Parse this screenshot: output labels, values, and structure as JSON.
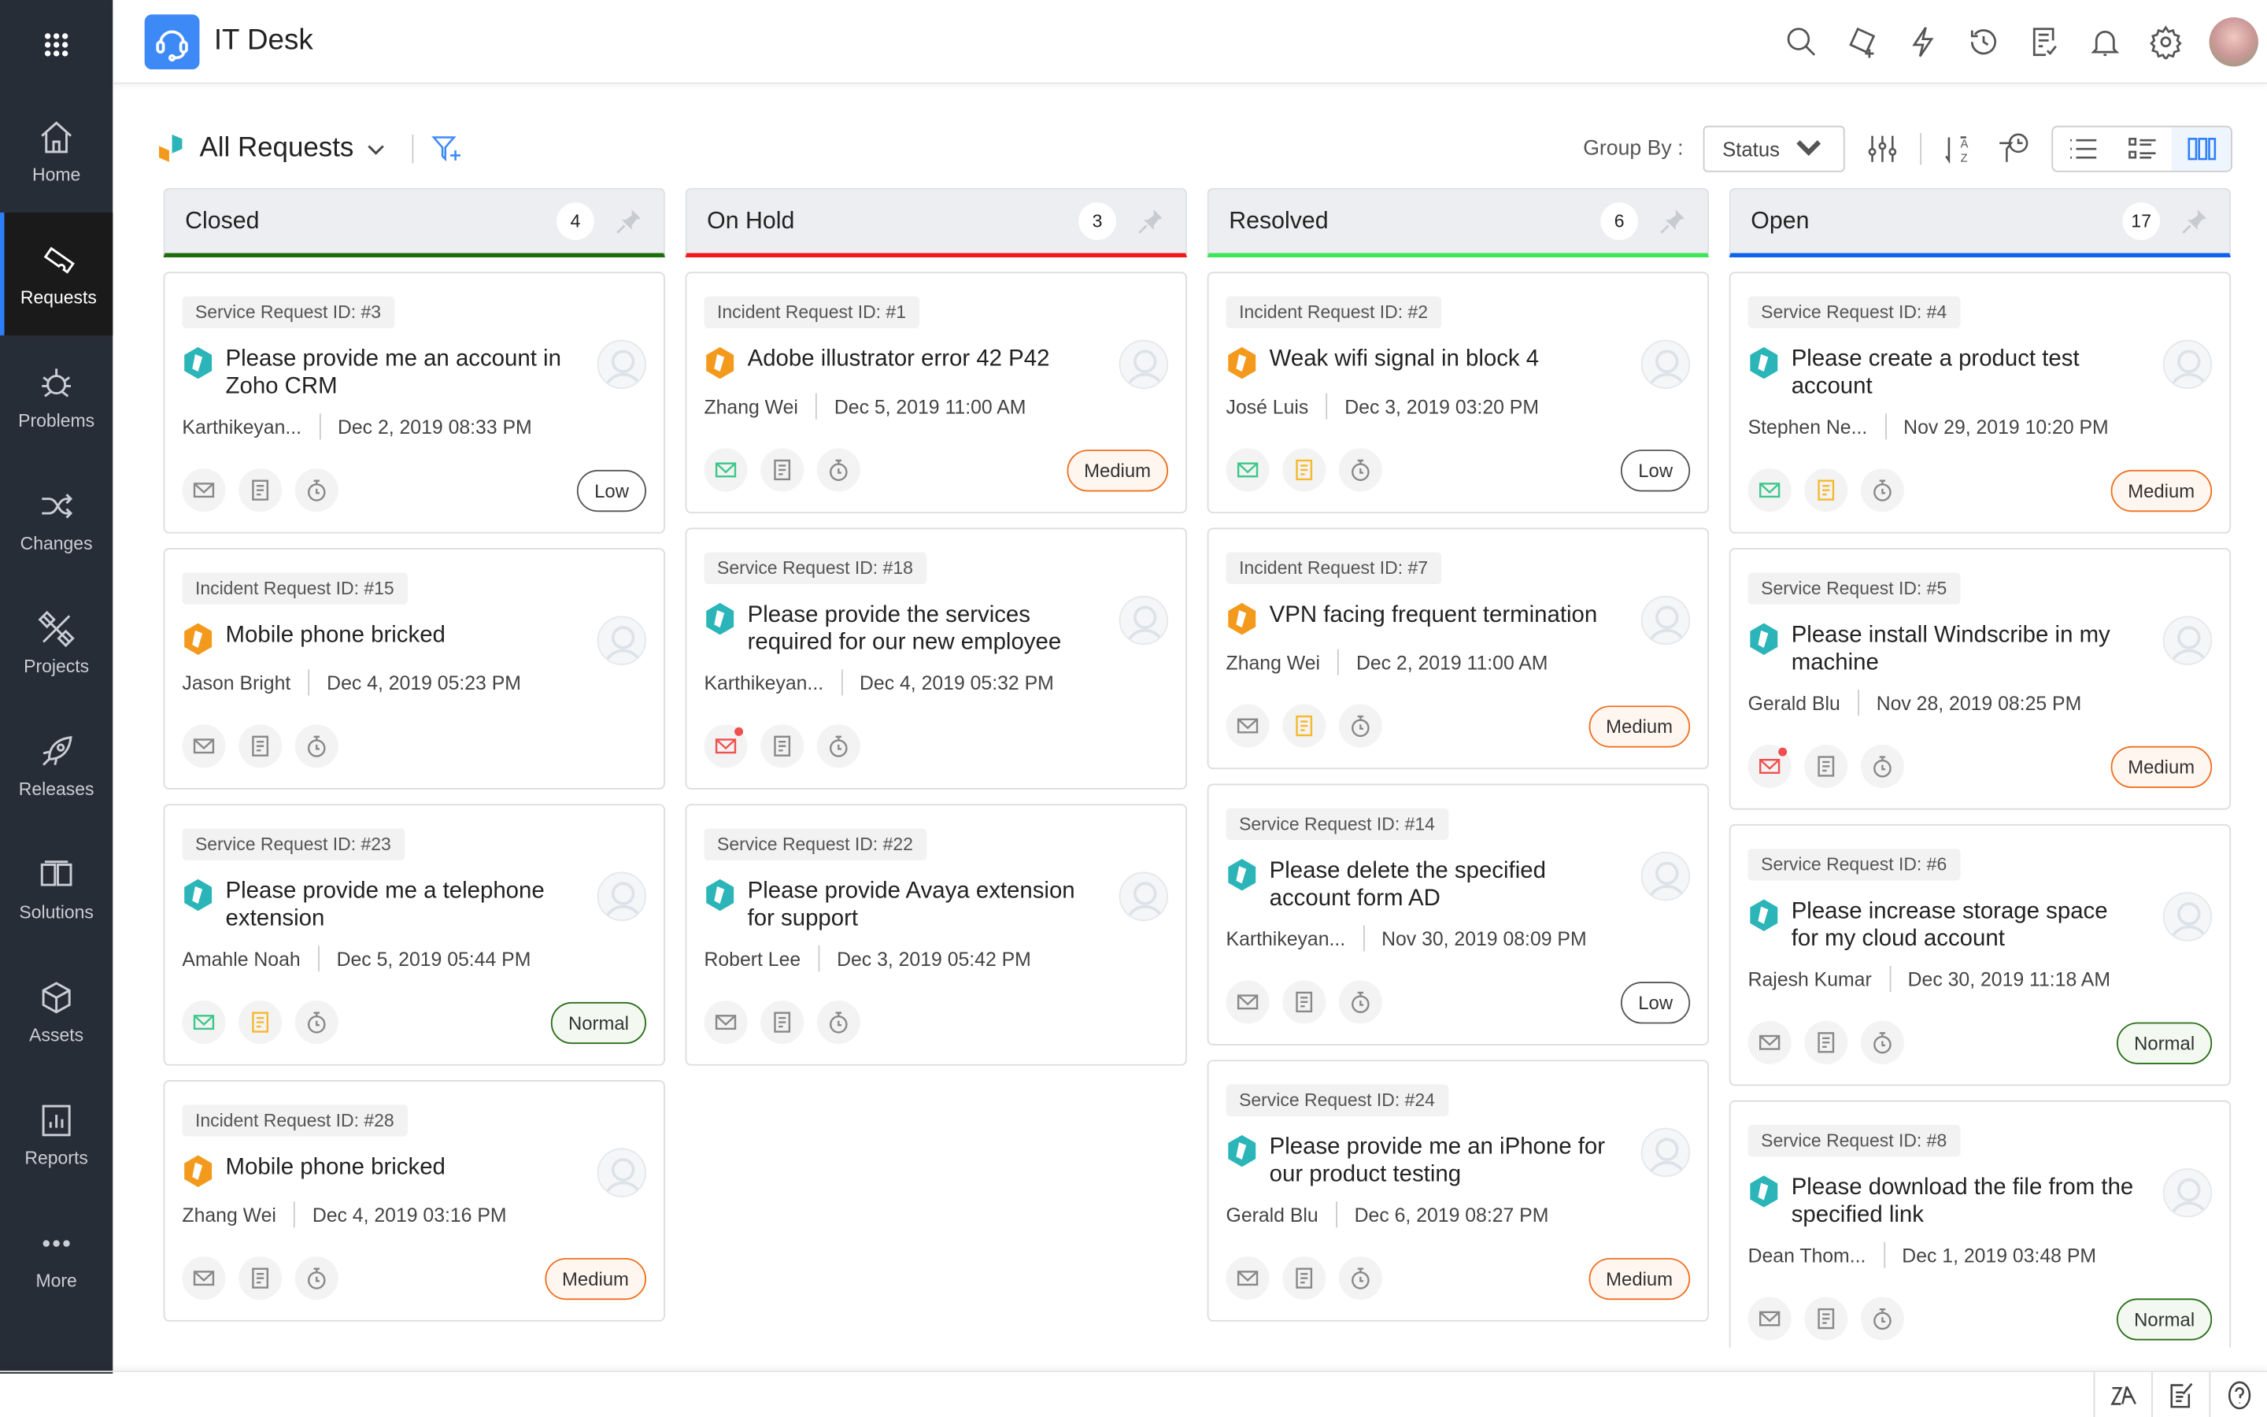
{
  "app": {
    "title": "IT Desk"
  },
  "sidebar": {
    "items": [
      {
        "label": "Home",
        "icon": "home-icon"
      },
      {
        "label": "Requests",
        "icon": "ticket-icon",
        "active": true
      },
      {
        "label": "Problems",
        "icon": "bug-icon"
      },
      {
        "label": "Changes",
        "icon": "shuffle-icon"
      },
      {
        "label": "Projects",
        "icon": "projects-icon"
      },
      {
        "label": "Releases",
        "icon": "rocket-icon"
      },
      {
        "label": "Solutions",
        "icon": "book-icon"
      },
      {
        "label": "Assets",
        "icon": "cube-icon"
      },
      {
        "label": "Reports",
        "icon": "chart-icon"
      },
      {
        "label": "More",
        "icon": "more-icon"
      }
    ]
  },
  "toolbar": {
    "view_title": "All Requests",
    "group_by_label": "Group By :",
    "group_by_value": "Status"
  },
  "colors": {
    "closed": "#1c6b0c",
    "on_hold": "#f01818",
    "resolved": "#3de55a",
    "open": "#1060f0",
    "low": "#555555",
    "medium": "#f07020",
    "normal": "#2a6e1a",
    "service": "#2bb5b8",
    "incident": "#f39a1d"
  },
  "columns": [
    {
      "name": "Closed",
      "count": "4",
      "color": "#1c6b0c",
      "cards": [
        {
          "type": "service",
          "id": "Service Request ID: #3",
          "title": "Please provide me an account in Zoho CRM",
          "requester": "Karthikeyan...",
          "date": "Dec 2, 2019 08:33 PM",
          "mail": "grey",
          "note": "grey",
          "priority": "Low"
        },
        {
          "type": "incident",
          "id": "Incident Request ID: #15",
          "title": "Mobile phone bricked",
          "requester": "Jason Bright",
          "date": "Dec 4, 2019 05:23 PM",
          "mail": "grey",
          "note": "grey",
          "priority": ""
        },
        {
          "type": "service",
          "id": "Service Request ID: #23",
          "title": "Please provide me a telephone extension",
          "requester": "Amahle Noah",
          "date": "Dec 5, 2019 05:44 PM",
          "mail": "green",
          "note": "yellow",
          "priority": "Normal"
        },
        {
          "type": "incident",
          "id": "Incident Request ID: #28",
          "title": "Mobile phone bricked",
          "requester": "Zhang Wei",
          "date": "Dec 4, 2019 03:16 PM",
          "mail": "grey",
          "note": "grey",
          "priority": "Medium"
        }
      ]
    },
    {
      "name": "On Hold",
      "count": "3",
      "color": "#f01818",
      "cards": [
        {
          "type": "incident",
          "id": "Incident Request ID: #1",
          "title": "Adobe illustrator error 42 P42",
          "requester": "Zhang Wei",
          "date": "Dec 5, 2019 11:00 AM",
          "mail": "green",
          "note": "grey",
          "priority": "Medium"
        },
        {
          "type": "service",
          "id": "Service Request ID: #18",
          "title": "Please provide the services required for our new employee",
          "requester": "Karthikeyan...",
          "date": "Dec 4, 2019 05:32 PM",
          "mail": "red",
          "note": "grey",
          "priority": ""
        },
        {
          "type": "service",
          "id": "Service Request ID: #22",
          "title": "Please provide Avaya extension for support",
          "requester": "Robert Lee",
          "date": "Dec 3, 2019 05:42 PM",
          "mail": "grey",
          "note": "grey",
          "priority": ""
        }
      ]
    },
    {
      "name": "Resolved",
      "count": "6",
      "color": "#3de55a",
      "cards": [
        {
          "type": "incident",
          "id": "Incident Request ID: #2",
          "title": "Weak wifi signal in block 4",
          "requester": "José Luis",
          "date": "Dec 3, 2019 03:20 PM",
          "mail": "green",
          "note": "yellow",
          "priority": "Low"
        },
        {
          "type": "incident",
          "id": "Incident Request ID: #7",
          "title": "VPN facing frequent termination",
          "requester": "Zhang Wei",
          "date": "Dec 2, 2019 11:00 AM",
          "mail": "grey",
          "note": "yellow",
          "priority": "Medium"
        },
        {
          "type": "service",
          "id": "Service Request ID: #14",
          "title": "Please delete the specified account form AD",
          "requester": "Karthikeyan...",
          "date": "Nov 30, 2019 08:09 PM",
          "mail": "grey",
          "note": "grey",
          "priority": "Low"
        },
        {
          "type": "service",
          "id": "Service Request ID: #24",
          "title": "Please provide me an iPhone for our product testing",
          "requester": "Gerald Blu",
          "date": "Dec 6, 2019 08:27 PM",
          "mail": "grey",
          "note": "grey",
          "priority": "Medium"
        }
      ]
    },
    {
      "name": "Open",
      "count": "17",
      "color": "#1060f0",
      "cards": [
        {
          "type": "service",
          "id": "Service Request ID: #4",
          "title": "Please create a product test account",
          "requester": "Stephen Ne...",
          "date": "Nov 29, 2019 10:20 PM",
          "mail": "green",
          "note": "yellow",
          "priority": "Medium"
        },
        {
          "type": "service",
          "id": "Service Request ID: #5",
          "title": "Please install Windscribe in my machine",
          "requester": "Gerald Blu",
          "date": "Nov 28, 2019 08:25 PM",
          "mail": "red",
          "note": "grey",
          "priority": "Medium"
        },
        {
          "type": "service",
          "id": "Service Request ID: #6",
          "title": "Please increase storage space for my cloud account",
          "requester": "Rajesh Kumar",
          "date": "Dec 30, 2019 11:18 AM",
          "mail": "grey",
          "note": "grey",
          "priority": "Normal"
        },
        {
          "type": "service",
          "id": "Service Request ID: #8",
          "title": "Please download the file from the specified link",
          "requester": "Dean Thom...",
          "date": "Dec 1, 2019 03:48 PM",
          "mail": "grey",
          "note": "grey",
          "priority": "Normal"
        }
      ]
    }
  ]
}
